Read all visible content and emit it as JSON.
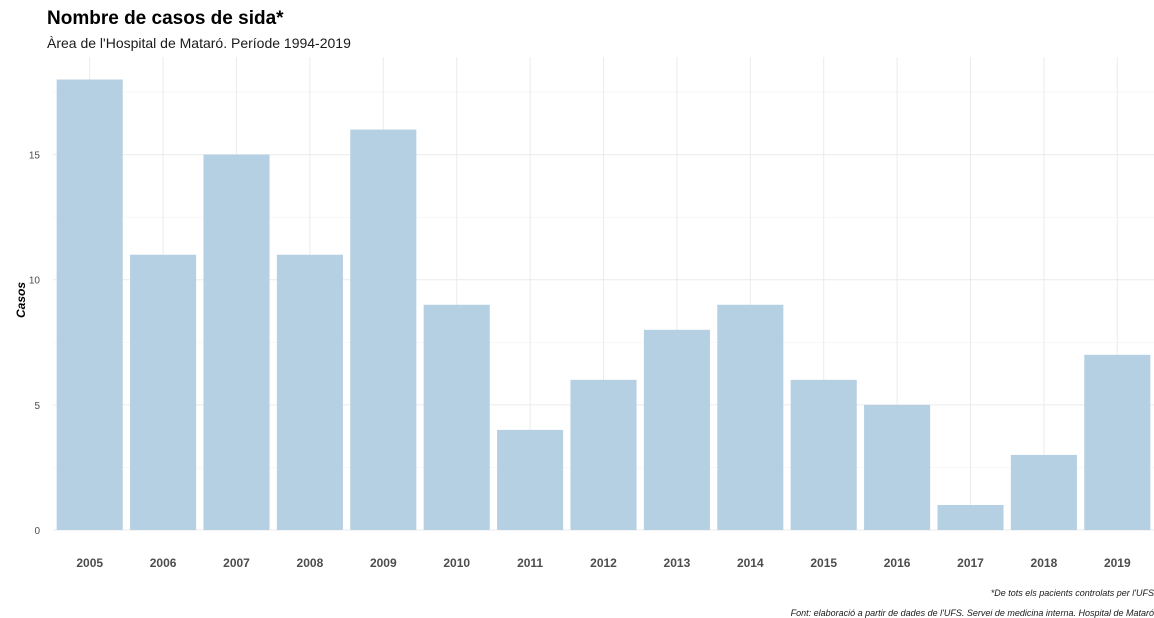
{
  "chart_data": {
    "type": "bar",
    "title": "Nombre de casos de sida*",
    "subtitle": "Àrea de l'Hospital de Mataró. Període 1994-2019",
    "xlabel": "",
    "ylabel": "Casos",
    "categories": [
      "2005",
      "2006",
      "2007",
      "2008",
      "2009",
      "2010",
      "2011",
      "2012",
      "2013",
      "2014",
      "2015",
      "2016",
      "2017",
      "2018",
      "2019"
    ],
    "values": [
      18,
      11,
      15,
      11,
      16,
      9,
      4,
      6,
      8,
      9,
      6,
      5,
      1,
      3,
      7
    ],
    "yticks": [
      "0",
      "5",
      "10",
      "15"
    ],
    "ylim": [
      0,
      18.9
    ],
    "grid": true,
    "legend": "none",
    "bar_color": "#b5cfe3",
    "captions": [
      "*De tots els pacients controlats per l'UFS",
      "Font: elaboració a partir de dades de l'UFS. Servei de medicina interna. Hospital de Mataró"
    ]
  }
}
